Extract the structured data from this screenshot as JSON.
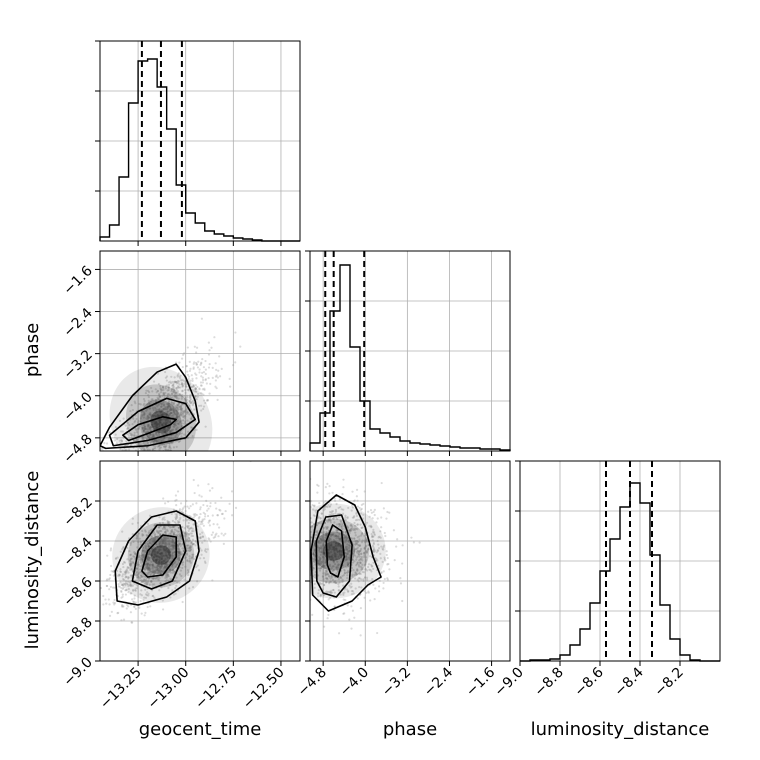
{
  "chart_data": {
    "type": "corner",
    "parameters": [
      "geocent_time",
      "phase",
      "luminosity_distance"
    ],
    "grid": true,
    "colors": {
      "line": "#000000",
      "grid": "#b0b0b0",
      "scatter": "#9a9a9a",
      "frame": "#000000"
    },
    "ranges": {
      "geocent_time": [
        -13.45,
        -12.4
      ],
      "phase": [
        -5.05,
        -1.25
      ],
      "luminosity_distance": [
        -9.0,
        -8.0
      ]
    },
    "ticks": {
      "geocent_time": {
        "values": [
          -13.25,
          -13.0,
          -12.75,
          -12.5
        ],
        "labels": [
          "−13.25",
          "−13.00",
          "−12.75",
          "−12.50"
        ]
      },
      "phase": {
        "values": [
          -4.8,
          -4.0,
          -3.2,
          -2.4,
          -1.6
        ],
        "labels": [
          "−4.8",
          "−4.0",
          "−3.2",
          "−2.4",
          "−1.6"
        ]
      },
      "luminosity_distance": {
        "values": [
          -9.0,
          -8.8,
          -8.6,
          -8.4,
          -8.2
        ],
        "labels": [
          "−9.0",
          "−8.8",
          "−8.6",
          "−8.4",
          "−8.2"
        ]
      }
    },
    "histograms": {
      "geocent_time": {
        "edges": [
          -13.45,
          -13.4,
          -13.35,
          -13.3,
          -13.25,
          -13.2,
          -13.15,
          -13.1,
          -13.05,
          -13.0,
          -12.95,
          -12.9,
          -12.85,
          -12.8,
          -12.75,
          -12.7,
          -12.65,
          -12.6,
          -12.55,
          -12.5,
          -12.45,
          -12.4
        ],
        "counts": [
          0.02,
          0.08,
          0.32,
          0.69,
          0.9,
          0.91,
          0.77,
          0.56,
          0.28,
          0.14,
          0.09,
          0.05,
          0.035,
          0.025,
          0.015,
          0.01,
          0.005,
          0.0,
          0.0,
          0.0,
          0.0
        ],
        "quantiles": [
          -13.23,
          -13.13,
          -13.02
        ],
        "ymax": 1.0
      },
      "phase": {
        "edges": [
          -5.05,
          -4.86,
          -4.67,
          -4.48,
          -4.29,
          -4.1,
          -3.91,
          -3.72,
          -3.53,
          -3.34,
          -3.15,
          -2.96,
          -2.77,
          -2.58,
          -2.39,
          -2.2,
          -2.01,
          -1.82,
          -1.63,
          -1.44,
          -1.25
        ],
        "counts": [
          0.04,
          0.19,
          0.7,
          0.93,
          0.52,
          0.25,
          0.11,
          0.09,
          0.07,
          0.05,
          0.04,
          0.035,
          0.03,
          0.025,
          0.02,
          0.015,
          0.015,
          0.01,
          0.01,
          0.005
        ],
        "quantiles": [
          -4.76,
          -4.6,
          -4.02
        ],
        "ymax": 1.0
      },
      "luminosity_distance": {
        "edges": [
          -9.0,
          -8.95,
          -8.9,
          -8.85,
          -8.8,
          -8.75,
          -8.7,
          -8.65,
          -8.6,
          -8.55,
          -8.5,
          -8.45,
          -8.4,
          -8.35,
          -8.3,
          -8.25,
          -8.2,
          -8.15,
          -8.1,
          -8.05,
          -8.0
        ],
        "counts": [
          0.0,
          0.005,
          0.005,
          0.01,
          0.03,
          0.08,
          0.16,
          0.29,
          0.45,
          0.61,
          0.77,
          0.89,
          0.79,
          0.53,
          0.28,
          0.11,
          0.03,
          0.005,
          0.0,
          0.0
        ],
        "quantiles": [
          -8.57,
          -8.45,
          -8.34
        ],
        "ymax": 1.0
      }
    },
    "joint": [
      {
        "x": "geocent_time",
        "y": "phase",
        "mean": [
          -13.13,
          -4.5
        ],
        "std": [
          0.13,
          0.55
        ],
        "corr": 0.72,
        "contours": [
          [
            [
              -13.3,
              -4.85
            ],
            [
              -13.2,
              -4.72
            ],
            [
              -13.08,
              -4.55
            ],
            [
              -13.05,
              -4.45
            ],
            [
              -13.12,
              -4.4
            ],
            [
              -13.25,
              -4.55
            ],
            [
              -13.33,
              -4.75
            ]
          ],
          [
            [
              -13.38,
              -4.95
            ],
            [
              -13.2,
              -4.85
            ],
            [
              -13.05,
              -4.7
            ],
            [
              -12.95,
              -4.45
            ],
            [
              -13.0,
              -4.15
            ],
            [
              -13.1,
              -4.05
            ],
            [
              -13.25,
              -4.3
            ],
            [
              -13.4,
              -4.75
            ]
          ],
          [
            [
              -13.42,
              -5.0
            ],
            [
              -13.2,
              -4.95
            ],
            [
              -13.0,
              -4.8
            ],
            [
              -12.93,
              -4.5
            ],
            [
              -12.95,
              -4.1
            ],
            [
              -13.0,
              -3.65
            ],
            [
              -13.05,
              -3.4
            ],
            [
              -13.15,
              -3.55
            ],
            [
              -13.28,
              -4.0
            ],
            [
              -13.4,
              -4.6
            ],
            [
              -13.45,
              -4.95
            ]
          ]
        ]
      },
      {
        "x": "geocent_time",
        "y": "luminosity_distance",
        "mean": [
          -13.13,
          -8.47
        ],
        "std": [
          0.13,
          0.12
        ],
        "corr": 0.6,
        "contours": [
          [
            [
              -13.23,
              -8.55
            ],
            [
              -13.2,
              -8.45
            ],
            [
              -13.12,
              -8.37
            ],
            [
              -13.05,
              -8.38
            ],
            [
              -13.05,
              -8.48
            ],
            [
              -13.12,
              -8.57
            ],
            [
              -13.2,
              -8.58
            ]
          ],
          [
            [
              -13.28,
              -8.6
            ],
            [
              -13.25,
              -8.45
            ],
            [
              -13.15,
              -8.32
            ],
            [
              -13.03,
              -8.32
            ],
            [
              -13.0,
              -8.45
            ],
            [
              -13.07,
              -8.6
            ],
            [
              -13.18,
              -8.64
            ]
          ],
          [
            [
              -13.36,
              -8.7
            ],
            [
              -13.37,
              -8.55
            ],
            [
              -13.3,
              -8.4
            ],
            [
              -13.18,
              -8.28
            ],
            [
              -13.05,
              -8.25
            ],
            [
              -12.95,
              -8.3
            ],
            [
              -12.93,
              -8.45
            ],
            [
              -12.98,
              -8.6
            ],
            [
              -13.1,
              -8.68
            ],
            [
              -13.25,
              -8.72
            ]
          ]
        ]
      },
      {
        "x": "phase",
        "y": "luminosity_distance",
        "mean": [
          -4.6,
          -8.45
        ],
        "std": [
          0.5,
          0.12
        ],
        "corr": 0.0,
        "contours": [
          [
            [
              -4.72,
              -8.52
            ],
            [
              -4.74,
              -8.4
            ],
            [
              -4.62,
              -8.32
            ],
            [
              -4.45,
              -8.35
            ],
            [
              -4.4,
              -8.48
            ],
            [
              -4.52,
              -8.58
            ],
            [
              -4.66,
              -8.56
            ]
          ],
          [
            [
              -4.92,
              -8.6
            ],
            [
              -4.93,
              -8.4
            ],
            [
              -4.75,
              -8.28
            ],
            [
              -4.45,
              -8.27
            ],
            [
              -4.25,
              -8.42
            ],
            [
              -4.3,
              -8.6
            ],
            [
              -4.55,
              -8.68
            ],
            [
              -4.8,
              -8.66
            ]
          ],
          [
            [
              -5.0,
              -8.67
            ],
            [
              -5.03,
              -8.45
            ],
            [
              -4.9,
              -8.25
            ],
            [
              -4.55,
              -8.17
            ],
            [
              -4.2,
              -8.22
            ],
            [
              -4.0,
              -8.33
            ],
            [
              -3.85,
              -8.48
            ],
            [
              -3.7,
              -8.58
            ],
            [
              -3.95,
              -8.62
            ],
            [
              -4.25,
              -8.7
            ],
            [
              -4.7,
              -8.75
            ]
          ]
        ]
      }
    ]
  }
}
